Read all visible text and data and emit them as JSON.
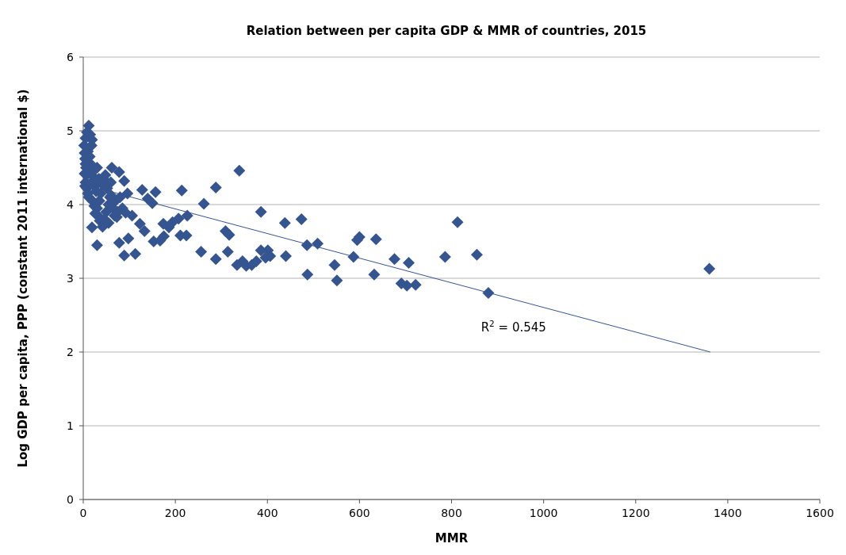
{
  "chart_data": {
    "type": "scatter",
    "title": "Relation between per capita GDP & MMR of countries, 2015",
    "xlabel": "MMR",
    "ylabel": "Log GDP per capita, PPP (constant 2011 international $)",
    "xlim": [
      0,
      1600
    ],
    "xticks": [
      0,
      200,
      400,
      600,
      800,
      1000,
      1200,
      1400,
      1600
    ],
    "ylim": [
      0,
      6
    ],
    "yticks": [
      0,
      1,
      2,
      3,
      4,
      5,
      6
    ],
    "grid": "y",
    "marker": "diamond",
    "series": [
      {
        "color": "#355591",
        "x": [
          1360,
          880,
          855,
          813,
          786,
          722,
          707,
          703,
          691,
          676,
          636,
          632,
          587,
          551,
          546,
          595,
          600,
          509,
          486,
          487,
          474,
          438,
          440,
          386,
          386,
          396,
          401,
          406,
          376,
          366,
          354,
          346,
          334,
          339,
          309,
          317,
          314,
          288,
          288,
          256,
          262,
          214,
          226,
          224,
          211,
          157,
          153,
          167,
          174,
          186,
          194,
          207,
          175,
          113,
          89,
          98,
          78,
          133,
          123,
          106,
          92,
          96,
          89,
          78,
          62,
          61,
          73,
          30,
          19,
          140,
          150,
          128,
          12,
          5,
          19,
          8,
          2,
          3,
          4,
          5,
          6,
          3,
          7,
          5,
          8,
          4,
          10,
          12,
          10,
          15,
          18,
          14,
          16,
          20,
          22,
          18,
          25,
          28,
          20,
          24,
          30,
          26,
          32,
          35,
          38,
          40,
          44,
          48,
          36,
          42,
          46,
          50,
          55,
          58,
          52,
          60,
          30,
          34,
          65,
          70,
          75,
          55,
          80,
          85,
          68
        ],
        "values": [
          3.13,
          2.8,
          3.32,
          3.76,
          3.29,
          2.91,
          3.21,
          2.9,
          2.93,
          3.26,
          3.53,
          3.05,
          3.29,
          2.97,
          3.18,
          3.52,
          3.56,
          3.47,
          3.45,
          3.05,
          3.8,
          3.75,
          3.3,
          3.9,
          3.38,
          3.28,
          3.38,
          3.3,
          3.23,
          3.18,
          3.17,
          3.23,
          3.18,
          4.46,
          3.64,
          3.59,
          3.36,
          4.23,
          3.26,
          3.36,
          4.01,
          4.19,
          3.85,
          3.58,
          3.58,
          4.17,
          3.5,
          3.51,
          3.74,
          3.69,
          3.76,
          3.81,
          3.57,
          3.33,
          3.31,
          3.54,
          3.48,
          3.64,
          3.74,
          3.85,
          3.89,
          4.15,
          4.32,
          4.44,
          4.5,
          4.12,
          3.83,
          3.45,
          3.69,
          4.08,
          4.02,
          4.2,
          5.07,
          4.9,
          4.88,
          4.98,
          4.8,
          4.7,
          4.62,
          4.55,
          4.5,
          4.42,
          4.4,
          4.3,
          4.22,
          4.25,
          4.15,
          4.1,
          4.72,
          4.95,
          4.8,
          4.65,
          4.55,
          4.45,
          4.38,
          4.3,
          4.25,
          4.18,
          4.05,
          3.98,
          3.95,
          3.88,
          3.85,
          4.05,
          4.15,
          4.28,
          4.35,
          4.4,
          3.78,
          3.7,
          3.8,
          3.9,
          4,
          4.1,
          4.22,
          4.3,
          4.5,
          4.35,
          3.95,
          4.05,
          3.9,
          3.75,
          4.1,
          3.95,
          3.85
        ]
      },
      {
        "type": "line",
        "color": "#355591",
        "marker": "none",
        "x": [
          3,
          1362
        ],
        "values": [
          4.27,
          2.0
        ]
      }
    ],
    "annotations": [
      "R$^{2}$ = 0.545"
    ]
  }
}
